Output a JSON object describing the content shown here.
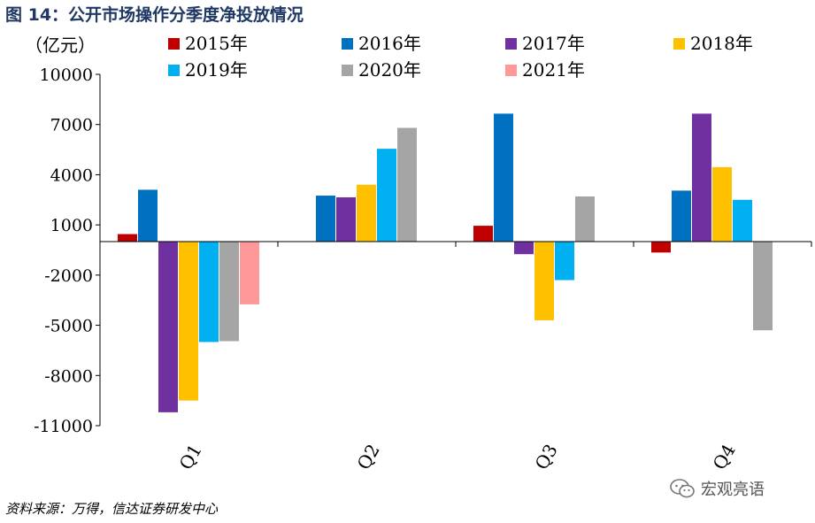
{
  "figure_title": "图 14：公开市场操作分季度净投放情况",
  "source_note": "资料来源：万得，信达证券研发中心",
  "watermark_text": "宏观亮语",
  "chart_data": {
    "type": "bar",
    "ylabel": "（亿元）",
    "categories": [
      "Q1",
      "Q2",
      "Q3",
      "Q4"
    ],
    "ylim": [
      -11000,
      10000
    ],
    "yticks": [
      10000,
      7000,
      4000,
      1000,
      -2000,
      -5000,
      -8000,
      -11000
    ],
    "grid": false,
    "legend_position": "top",
    "series": [
      {
        "name": "2015年",
        "color": "#c00000",
        "values": [
          450,
          null,
          950,
          -650
        ]
      },
      {
        "name": "2016年",
        "color": "#0070c0",
        "values": [
          3100,
          2750,
          7650,
          3050
        ]
      },
      {
        "name": "2017年",
        "color": "#7030a0",
        "values": [
          -10200,
          2650,
          -750,
          7650
        ]
      },
      {
        "name": "2018年",
        "color": "#ffc000",
        "values": [
          -9500,
          3400,
          -4700,
          4450
        ]
      },
      {
        "name": "2019年",
        "color": "#00b0f0",
        "values": [
          -6000,
          5550,
          -2300,
          2500
        ]
      },
      {
        "name": "2020年",
        "color": "#a5a5a5",
        "values": [
          -5950,
          6800,
          2700,
          -5300
        ]
      },
      {
        "name": "2021年",
        "color": "#ff9999",
        "values": [
          -3750,
          null,
          null,
          null
        ]
      }
    ]
  }
}
